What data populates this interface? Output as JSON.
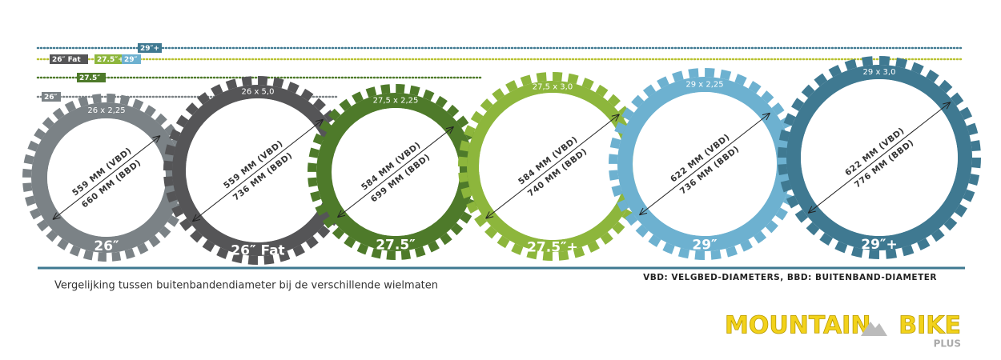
{
  "markers": [
    [
      "29″+"
    ],
    [
      "26″ Fat",
      "27.5″+",
      "29″"
    ],
    [
      "27.5″"
    ],
    [
      "26″"
    ]
  ],
  "wheels": [
    {
      "name": "26″",
      "size": "26 x 2,25",
      "vbd": "559 MM (VBD)",
      "bbd": "660 MM (BBD)",
      "color": "#7b8286"
    },
    {
      "name": "26″ Fat",
      "size": "26 x 5,0",
      "vbd": "559 MM (VBD)",
      "bbd": "736 MM (BBD)",
      "color": "#555557"
    },
    {
      "name": "27.5″",
      "size": "27,5 x 2,25",
      "vbd": "584 MM (VBD)",
      "bbd": "699 MM (BBD)",
      "color": "#4e7a2a"
    },
    {
      "name": "27.5″+",
      "size": "27,5 x 3,0",
      "vbd": "584 MM (VBD)",
      "bbd": "740 MM (BBD)",
      "color": "#8db63c"
    },
    {
      "name": "29″",
      "size": "29 x 2,25",
      "vbd": "622 MM (VBD)",
      "bbd": "736 MM (BBD)",
      "color": "#6db1d0"
    },
    {
      "name": "29″+",
      "size": "29 x 3,0",
      "vbd": "622 MM (VBD)",
      "bbd": "776 MM (BBD)",
      "color": "#3f7991"
    }
  ],
  "caption": "Vergelijking tussen buitenbandendiameter bij de verschillende wielmaten",
  "legend": "VBD: VELGBED-DIAMETERS, BBD: BUITENBAND-DIAMETER",
  "logo": {
    "main": "MOUNTAIN",
    "second": "BIKE",
    "sub": "PLUS"
  }
}
